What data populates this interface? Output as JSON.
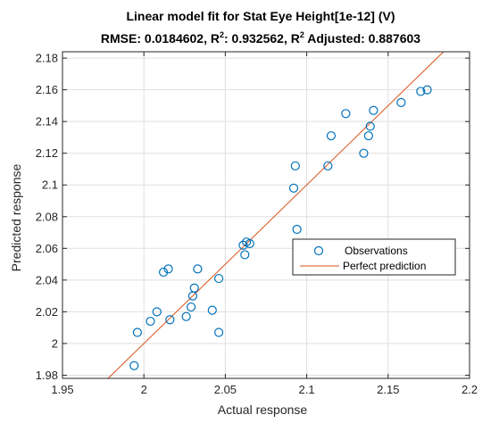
{
  "chart_data": {
    "type": "scatter",
    "title_line1": "Linear model fit for Stat Eye Height[1e-12] (V)",
    "title_line2_parts": {
      "rmse": "RMSE: 0.0184602, R",
      "sup1": "2",
      "r2": ": 0.932562, R",
      "sup2": "2",
      "adj": " Adjusted: 0.887603"
    },
    "xlabel": "Actual response",
    "ylabel": "Predicted response",
    "xlim": [
      1.95,
      2.2
    ],
    "ylim": [
      1.978,
      2.184
    ],
    "x_ticks": [
      1.95,
      2.0,
      2.05,
      2.1,
      2.15,
      2.2
    ],
    "x_tick_labels": [
      "1.95",
      "2",
      "2.05",
      "2.1",
      "2.15",
      "2.2"
    ],
    "y_ticks": [
      1.98,
      2.0,
      2.02,
      2.04,
      2.06,
      2.08,
      2.1,
      2.12,
      2.14,
      2.16,
      2.18
    ],
    "y_tick_labels": [
      "1.98",
      "2",
      "2.02",
      "2.04",
      "2.06",
      "2.08",
      "2.1",
      "2.12",
      "2.14",
      "2.16",
      "2.18"
    ],
    "grid": true,
    "legend_position": "middle-right",
    "series": [
      {
        "name": "Observations",
        "style": "markers",
        "color": "#0072BD",
        "points": [
          [
            1.994,
            1.986
          ],
          [
            1.996,
            2.007
          ],
          [
            2.004,
            2.014
          ],
          [
            2.008,
            2.02
          ],
          [
            2.012,
            2.045
          ],
          [
            2.015,
            2.047
          ],
          [
            2.016,
            2.015
          ],
          [
            2.026,
            2.017
          ],
          [
            2.029,
            2.023
          ],
          [
            2.03,
            2.03
          ],
          [
            2.031,
            2.035
          ],
          [
            2.033,
            2.047
          ],
          [
            2.042,
            2.021
          ],
          [
            2.046,
            2.041
          ],
          [
            2.046,
            2.007
          ],
          [
            2.061,
            2.062
          ],
          [
            2.062,
            2.056
          ],
          [
            2.063,
            2.064
          ],
          [
            2.065,
            2.063
          ],
          [
            2.092,
            2.098
          ],
          [
            2.093,
            2.112
          ],
          [
            2.094,
            2.072
          ],
          [
            2.113,
            2.112
          ],
          [
            2.115,
            2.131
          ],
          [
            2.124,
            2.145
          ],
          [
            2.135,
            2.12
          ],
          [
            2.138,
            2.131
          ],
          [
            2.139,
            2.137
          ],
          [
            2.141,
            2.147
          ],
          [
            2.158,
            2.152
          ],
          [
            2.17,
            2.159
          ],
          [
            2.174,
            2.16
          ]
        ]
      },
      {
        "name": "Perfect prediction",
        "style": "line",
        "color": "#D95319",
        "points": [
          [
            1.978,
            1.978
          ],
          [
            2.184,
            2.184
          ]
        ]
      }
    ]
  }
}
